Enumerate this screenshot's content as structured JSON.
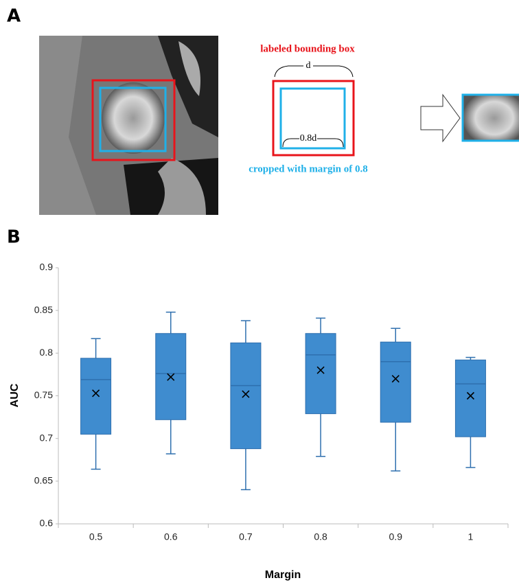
{
  "panel_a": {
    "label": "A",
    "box_label": "labeled bounding box",
    "outer_size": "d",
    "inner_size": "0.8d",
    "crop_label": "cropped with margin of 0.8"
  },
  "panel_b": {
    "label": "B"
  },
  "chart_data": {
    "type": "box",
    "x_label": "Margin",
    "y_label": "AUC",
    "categories": [
      "0.5",
      "0.6",
      "0.7",
      "0.8",
      "0.9",
      "1"
    ],
    "whisker_low": [
      0.664,
      0.682,
      0.64,
      0.679,
      0.662,
      0.666
    ],
    "q1": [
      0.705,
      0.722,
      0.688,
      0.729,
      0.719,
      0.702
    ],
    "median": [
      0.769,
      0.776,
      0.762,
      0.798,
      0.79,
      0.764
    ],
    "q3": [
      0.794,
      0.823,
      0.812,
      0.823,
      0.813,
      0.792
    ],
    "whisker_high": [
      0.817,
      0.848,
      0.838,
      0.841,
      0.829,
      0.795
    ],
    "mean": [
      0.753,
      0.772,
      0.752,
      0.78,
      0.77,
      0.75
    ],
    "color": "#3f8ccf",
    "ylim": [
      0.6,
      0.9
    ],
    "yticks": [
      0.6,
      0.65,
      0.7,
      0.75,
      0.8,
      0.85,
      0.9
    ]
  }
}
